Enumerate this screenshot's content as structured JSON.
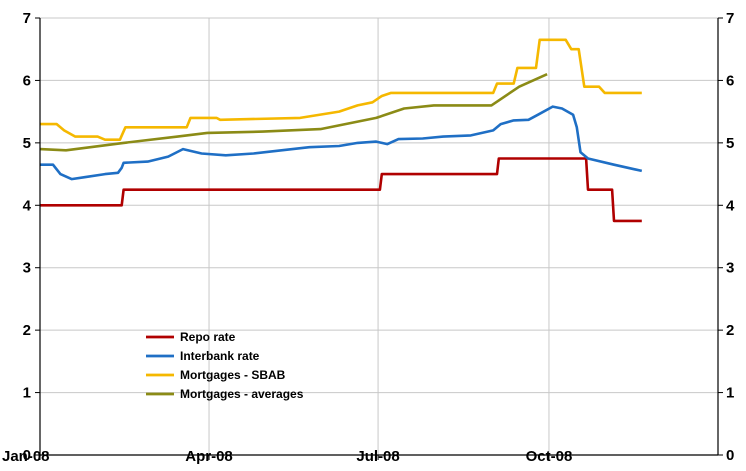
{
  "chart_data": {
    "type": "line",
    "x_tick_labels": [
      "Jan-08",
      "Apr-08",
      "Jul-08",
      "Oct-08"
    ],
    "x_tick_dates": [
      "2008-01-01",
      "2008-04-01",
      "2008-07-01",
      "2008-10-01"
    ],
    "x_range": [
      "2008-01-01",
      "2008-12-31"
    ],
    "y_left": {
      "ylim": [
        0,
        7
      ],
      "ticks": [
        "0",
        "1",
        "2",
        "3",
        "4",
        "5",
        "6",
        "7"
      ]
    },
    "y_right": {
      "ylim": [
        0,
        7
      ],
      "ticks": [
        "0",
        "1",
        "2",
        "3",
        "4",
        "5",
        "6",
        "7"
      ]
    },
    "grid": true,
    "legend_placement": "bottom-left",
    "series": [
      {
        "name": "Repo rate",
        "color": "#b00000",
        "points": [
          [
            "2008-01-01",
            4.0
          ],
          [
            "2008-02-14",
            4.0
          ],
          [
            "2008-02-15",
            4.25
          ],
          [
            "2008-07-02",
            4.25
          ],
          [
            "2008-07-03",
            4.5
          ],
          [
            "2008-09-03",
            4.5
          ],
          [
            "2008-09-04",
            4.75
          ],
          [
            "2008-10-21",
            4.75
          ],
          [
            "2008-10-22",
            4.25
          ],
          [
            "2008-11-04",
            4.25
          ],
          [
            "2008-11-05",
            3.75
          ],
          [
            "2008-11-20",
            3.75
          ]
        ]
      },
      {
        "name": "Interbank rate",
        "color": "#1f6fc5",
        "points": [
          [
            "2008-01-01",
            4.65
          ],
          [
            "2008-01-08",
            4.65
          ],
          [
            "2008-01-12",
            4.5
          ],
          [
            "2008-01-18",
            4.42
          ],
          [
            "2008-01-25",
            4.45
          ],
          [
            "2008-02-05",
            4.5
          ],
          [
            "2008-02-12",
            4.52
          ],
          [
            "2008-02-14",
            4.6
          ],
          [
            "2008-02-15",
            4.68
          ],
          [
            "2008-02-28",
            4.7
          ],
          [
            "2008-03-10",
            4.78
          ],
          [
            "2008-03-18",
            4.9
          ],
          [
            "2008-03-28",
            4.83
          ],
          [
            "2008-04-10",
            4.8
          ],
          [
            "2008-04-25",
            4.83
          ],
          [
            "2008-05-10",
            4.88
          ],
          [
            "2008-05-25",
            4.93
          ],
          [
            "2008-06-10",
            4.95
          ],
          [
            "2008-06-20",
            5.0
          ],
          [
            "2008-06-30",
            5.02
          ],
          [
            "2008-07-06",
            4.98
          ],
          [
            "2008-07-12",
            5.06
          ],
          [
            "2008-07-25",
            5.07
          ],
          [
            "2008-08-05",
            5.1
          ],
          [
            "2008-08-20",
            5.12
          ],
          [
            "2008-09-01",
            5.2
          ],
          [
            "2008-09-05",
            5.3
          ],
          [
            "2008-09-12",
            5.36
          ],
          [
            "2008-09-20",
            5.37
          ],
          [
            "2008-09-25",
            5.45
          ],
          [
            "2008-10-03",
            5.58
          ],
          [
            "2008-10-08",
            5.55
          ],
          [
            "2008-10-14",
            5.45
          ],
          [
            "2008-10-16",
            5.25
          ],
          [
            "2008-10-18",
            4.85
          ],
          [
            "2008-10-22",
            4.75
          ],
          [
            "2008-11-05",
            4.65
          ],
          [
            "2008-11-20",
            4.55
          ]
        ]
      },
      {
        "name": "Mortgages - SBAB",
        "color": "#f5b800",
        "points": [
          [
            "2008-01-01",
            5.3
          ],
          [
            "2008-01-10",
            5.3
          ],
          [
            "2008-01-14",
            5.2
          ],
          [
            "2008-01-20",
            5.1
          ],
          [
            "2008-02-01",
            5.1
          ],
          [
            "2008-02-05",
            5.05
          ],
          [
            "2008-02-13",
            5.05
          ],
          [
            "2008-02-16",
            5.25
          ],
          [
            "2008-03-20",
            5.25
          ],
          [
            "2008-03-22",
            5.4
          ],
          [
            "2008-04-05",
            5.4
          ],
          [
            "2008-04-07",
            5.37
          ],
          [
            "2008-05-20",
            5.4
          ],
          [
            "2008-06-10",
            5.5
          ],
          [
            "2008-06-20",
            5.6
          ],
          [
            "2008-06-28",
            5.65
          ],
          [
            "2008-07-03",
            5.75
          ],
          [
            "2008-07-08",
            5.8
          ],
          [
            "2008-09-01",
            5.8
          ],
          [
            "2008-09-03",
            5.95
          ],
          [
            "2008-09-12",
            5.95
          ],
          [
            "2008-09-14",
            6.2
          ],
          [
            "2008-09-24",
            6.2
          ],
          [
            "2008-09-26",
            6.65
          ],
          [
            "2008-10-10",
            6.65
          ],
          [
            "2008-10-13",
            6.5
          ],
          [
            "2008-10-17",
            6.5
          ],
          [
            "2008-10-20",
            5.9
          ],
          [
            "2008-10-28",
            5.9
          ],
          [
            "2008-10-31",
            5.8
          ],
          [
            "2008-11-20",
            5.8
          ]
        ]
      },
      {
        "name": "Mortgages - averages",
        "color": "#8b8b16",
        "points": [
          [
            "2008-01-01",
            4.9
          ],
          [
            "2008-01-15",
            4.88
          ],
          [
            "2008-02-15",
            5.0
          ],
          [
            "2008-03-15",
            5.1
          ],
          [
            "2008-03-31",
            5.16
          ],
          [
            "2008-04-30",
            5.18
          ],
          [
            "2008-05-31",
            5.22
          ],
          [
            "2008-06-30",
            5.4
          ],
          [
            "2008-07-15",
            5.55
          ],
          [
            "2008-07-31",
            5.6
          ],
          [
            "2008-08-31",
            5.6
          ],
          [
            "2008-09-15",
            5.9
          ],
          [
            "2008-09-30",
            6.1
          ]
        ]
      }
    ]
  }
}
